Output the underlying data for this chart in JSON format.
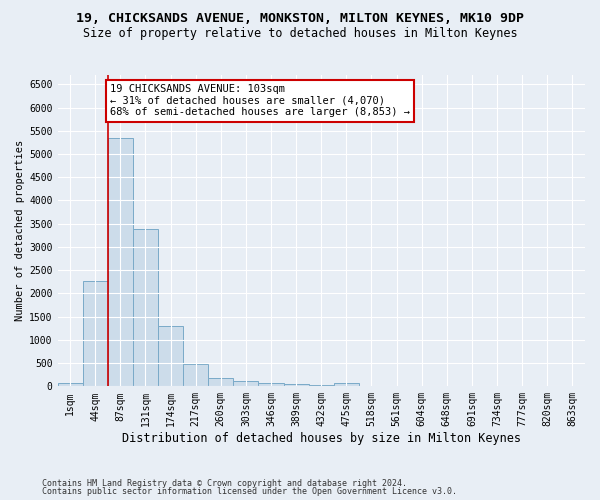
{
  "title": "19, CHICKSANDS AVENUE, MONKSTON, MILTON KEYNES, MK10 9DP",
  "subtitle": "Size of property relative to detached houses in Milton Keynes",
  "xlabel": "Distribution of detached houses by size in Milton Keynes",
  "ylabel": "Number of detached properties",
  "footnote1": "Contains HM Land Registry data © Crown copyright and database right 2024.",
  "footnote2": "Contains public sector information licensed under the Open Government Licence v3.0.",
  "bar_labels": [
    "1sqm",
    "44sqm",
    "87sqm",
    "131sqm",
    "174sqm",
    "217sqm",
    "260sqm",
    "303sqm",
    "346sqm",
    "389sqm",
    "432sqm",
    "475sqm",
    "518sqm",
    "561sqm",
    "604sqm",
    "648sqm",
    "691sqm",
    "734sqm",
    "777sqm",
    "820sqm",
    "863sqm"
  ],
  "bar_values": [
    65,
    2270,
    5350,
    3380,
    1290,
    480,
    170,
    115,
    80,
    40,
    20,
    65,
    5,
    3,
    2,
    1,
    1,
    1,
    1,
    1,
    1
  ],
  "bar_color": "#ccdcea",
  "bar_edge_color": "#7aaac8",
  "ylim": [
    0,
    6700
  ],
  "yticks": [
    0,
    500,
    1000,
    1500,
    2000,
    2500,
    3000,
    3500,
    4000,
    4500,
    5000,
    5500,
    6000,
    6500
  ],
  "property_line_color": "#cc0000",
  "annotation_text": "19 CHICKSANDS AVENUE: 103sqm\n← 31% of detached houses are smaller (4,070)\n68% of semi-detached houses are larger (8,853) →",
  "annotation_box_color": "#cc0000",
  "background_color": "#e8eef5",
  "grid_color": "#ffffff",
  "title_fontsize": 9.5,
  "subtitle_fontsize": 8.5,
  "xlabel_fontsize": 8.5,
  "ylabel_fontsize": 7.5,
  "tick_fontsize": 7,
  "footnote_fontsize": 6,
  "annotation_fontsize": 7.5
}
